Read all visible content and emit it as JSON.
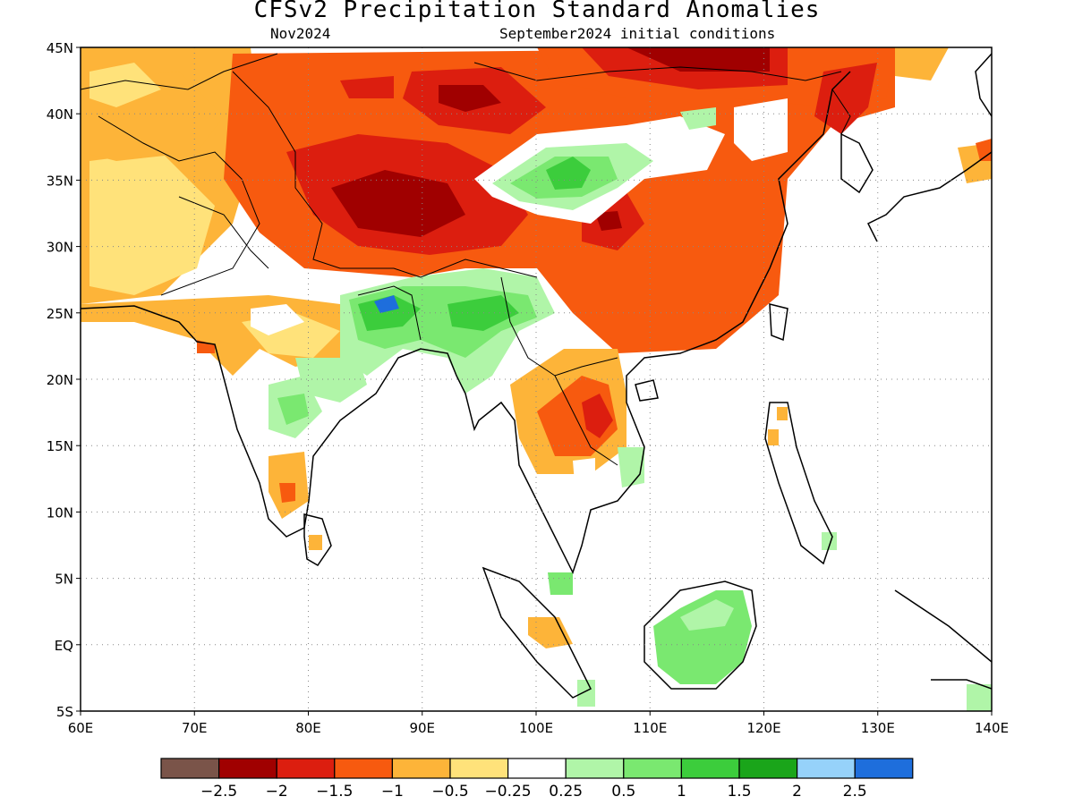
{
  "title": "CFSv2 Precipitation Standard Anomalies",
  "subtitle_left": "Nov2024",
  "subtitle_right": "September2024 initial conditions",
  "map": {
    "lon_range": [
      60,
      140
    ],
    "lat_range": [
      -5,
      45
    ],
    "x_ticks": [
      "60E",
      "70E",
      "80E",
      "90E",
      "100E",
      "110E",
      "120E",
      "130E",
      "140E"
    ],
    "y_ticks": [
      "45N",
      "40N",
      "35N",
      "30N",
      "25N",
      "20N",
      "15N",
      "10N",
      "5N",
      "EQ",
      "5S"
    ],
    "grid": "dotted"
  },
  "legend": {
    "colors": [
      "#7a5449",
      "#a00000",
      "#dc1e0f",
      "#f75a0f",
      "#fdb439",
      "#ffe27a",
      "#ffffff",
      "#b0f5a8",
      "#7ae870",
      "#3ccd3c",
      "#1aa51a",
      "#96d2fa",
      "#1e6edc"
    ],
    "labels": [
      "−2.5",
      "−2",
      "−1.5",
      "−1",
      "−0.5",
      "−0.25",
      "0.25",
      "0.5",
      "1",
      "1.5",
      "2",
      "2.5"
    ]
  }
}
